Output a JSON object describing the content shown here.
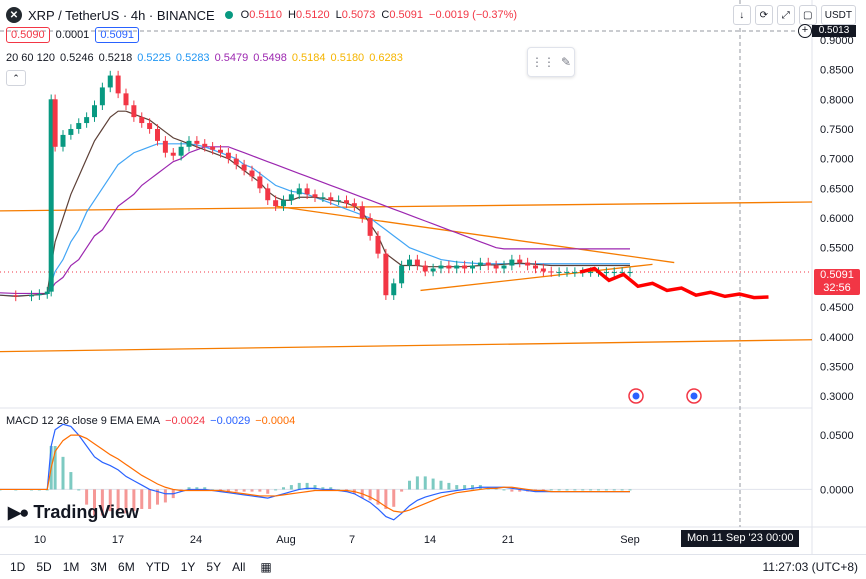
{
  "header": {
    "title": "XRP / TetherUS · 4h · BINANCE",
    "logo": "✕",
    "ohlc": [
      {
        "k": "O",
        "v": "0.5110"
      },
      {
        "k": "H",
        "v": "0.5120"
      },
      {
        "k": "L",
        "v": "0.5073"
      },
      {
        "k": "C",
        "v": "0.5091"
      }
    ],
    "change": "−0.0019 (−0.37%)",
    "bid": "0.5090",
    "spread": "0.0001",
    "ask": "0.5091",
    "currency": "USDT"
  },
  "ma_legend": {
    "label": "20 60 120",
    "values": [
      {
        "v": "0.5246",
        "color": "#131722"
      },
      {
        "v": "0.5218",
        "color": "#131722"
      },
      {
        "v": "0.5225",
        "color": "#2196f3"
      },
      {
        "v": "0.5283",
        "color": "#2196f3"
      },
      {
        "v": "0.5479",
        "color": "#9c27b0"
      },
      {
        "v": "0.5498",
        "color": "#9c27b0"
      },
      {
        "v": "0.5184",
        "color": "#f5b400"
      },
      {
        "v": "0.5180",
        "color": "#f5b400"
      },
      {
        "v": "0.6283",
        "color": "#f5b400"
      }
    ]
  },
  "macd_legend": {
    "label": "MACD 12 26 close 9 EMA EMA",
    "values": [
      {
        "v": "−0.0024",
        "color": "#f23645"
      },
      {
        "v": "−0.0029",
        "color": "#2962ff"
      },
      {
        "v": "−0.0004",
        "color": "#ff6d00"
      }
    ]
  },
  "price_label": {
    "price": "0.5091",
    "countdown": "32:56"
  },
  "dark_tag": "0.5013",
  "date_tooltip": "Mon 11 Sep '23   00:00",
  "brand": "TradingView",
  "ranges": [
    "1D",
    "5D",
    "1M",
    "3M",
    "6M",
    "YTD",
    "1Y",
    "5Y",
    "All"
  ],
  "clock": "11:27:03 (UTC+8)",
  "top_buttons": [
    "↓",
    "⟳",
    "⤢",
    "▢"
  ],
  "chart_data": {
    "type": "line",
    "symbol": "XRPUSDT",
    "timeframe": "4h",
    "x_tick_labels": [
      "10",
      "17",
      "24",
      "Aug",
      "7",
      "14",
      "21",
      "Sep"
    ],
    "y_ticks": [
      "0.9000",
      "0.8500",
      "0.8000",
      "0.7500",
      "0.7000",
      "0.6500",
      "0.6000",
      "0.5500",
      "0.5000",
      "0.4500",
      "0.4000",
      "0.3500",
      "0.3000"
    ],
    "ylim": [
      0.28,
      0.91
    ],
    "macd_ticks": [
      "0.0500",
      "0.0000"
    ],
    "macd_ylim": [
      -0.03,
      0.075
    ],
    "x_range": [
      0,
      112
    ],
    "price_x_days": [
      0,
      2,
      4,
      5,
      6,
      6.5,
      7,
      8,
      9,
      10,
      11,
      12,
      13,
      14,
      15,
      16,
      17,
      18,
      19,
      20,
      21,
      22,
      23,
      24,
      25,
      26,
      27,
      28,
      29,
      30,
      31,
      32,
      33,
      34,
      35,
      36,
      37,
      38,
      39,
      40,
      41,
      42,
      43,
      44,
      45,
      46,
      47,
      48,
      49,
      50,
      51,
      52,
      53,
      54,
      55,
      56,
      57,
      58,
      59,
      60,
      61,
      62,
      63,
      64,
      65,
      66,
      67,
      68,
      69,
      70,
      71,
      72,
      73,
      74,
      75,
      76,
      77,
      78,
      79,
      80
    ],
    "price": [
      0.47,
      0.468,
      0.47,
      0.472,
      0.476,
      0.8,
      0.72,
      0.74,
      0.75,
      0.76,
      0.77,
      0.79,
      0.82,
      0.84,
      0.81,
      0.79,
      0.77,
      0.76,
      0.75,
      0.73,
      0.71,
      0.705,
      0.72,
      0.73,
      0.725,
      0.72,
      0.715,
      0.71,
      0.7,
      0.69,
      0.68,
      0.67,
      0.65,
      0.63,
      0.62,
      0.63,
      0.64,
      0.65,
      0.64,
      0.635,
      0.635,
      0.63,
      0.63,
      0.625,
      0.62,
      0.6,
      0.57,
      0.54,
      0.47,
      0.49,
      0.52,
      0.53,
      0.52,
      0.51,
      0.515,
      0.52,
      0.515,
      0.52,
      0.515,
      0.52,
      0.525,
      0.52,
      0.515,
      0.52,
      0.53,
      0.525,
      0.52,
      0.515,
      0.51,
      0.509,
      0.509,
      0.509,
      0.509,
      0.509,
      0.509,
      0.509,
      0.509,
      0.509,
      0.509,
      0.509
    ],
    "ma20": [
      0.47,
      0.468,
      0.47,
      0.471,
      0.473,
      0.52,
      0.56,
      0.6,
      0.64,
      0.67,
      0.7,
      0.73,
      0.75,
      0.77,
      0.78,
      0.78,
      0.775,
      0.77,
      0.765,
      0.755,
      0.745,
      0.735,
      0.73,
      0.725,
      0.72,
      0.715,
      0.71,
      0.705,
      0.7,
      0.69,
      0.68,
      0.67,
      0.66,
      0.645,
      0.635,
      0.63,
      0.63,
      0.635,
      0.635,
      0.635,
      0.633,
      0.63,
      0.628,
      0.625,
      0.62,
      0.61,
      0.59,
      0.57,
      0.54,
      0.53,
      0.52,
      0.52,
      0.52,
      0.518,
      0.518,
      0.518,
      0.518,
      0.518,
      0.518,
      0.519,
      0.52,
      0.521,
      0.521,
      0.522,
      0.523,
      0.524,
      0.523,
      0.522,
      0.521,
      0.52,
      0.52,
      0.52,
      0.52,
      0.52,
      0.52,
      0.52,
      0.52,
      0.52,
      0.52,
      0.52
    ],
    "ma60": [
      0.47,
      0.469,
      0.47,
      0.471,
      0.472,
      0.49,
      0.51,
      0.53,
      0.56,
      0.58,
      0.61,
      0.63,
      0.65,
      0.67,
      0.69,
      0.7,
      0.71,
      0.715,
      0.72,
      0.725,
      0.725,
      0.725,
      0.725,
      0.725,
      0.723,
      0.72,
      0.715,
      0.71,
      0.705,
      0.7,
      0.69,
      0.685,
      0.675,
      0.665,
      0.655,
      0.65,
      0.645,
      0.643,
      0.64,
      0.635,
      0.63,
      0.625,
      0.62,
      0.615,
      0.61,
      0.605,
      0.6,
      0.59,
      0.58,
      0.57,
      0.56,
      0.55,
      0.545,
      0.54,
      0.535,
      0.53,
      0.528,
      0.526,
      0.525,
      0.524,
      0.523,
      0.523,
      0.523,
      0.523,
      0.523,
      0.523,
      0.523,
      0.523,
      0.523,
      0.523,
      0.523,
      0.523,
      0.523,
      0.523,
      0.523,
      0.523,
      0.523,
      0.523,
      0.523,
      0.523
    ],
    "ma120": [
      0.474,
      0.473,
      0.473,
      0.473,
      0.473,
      0.48,
      0.49,
      0.5,
      0.52,
      0.53,
      0.55,
      0.57,
      0.58,
      0.6,
      0.62,
      0.63,
      0.64,
      0.655,
      0.665,
      0.675,
      0.685,
      0.695,
      0.7,
      0.71,
      0.715,
      0.72,
      0.72,
      0.72,
      0.72,
      0.715,
      0.71,
      0.705,
      0.7,
      0.695,
      0.69,
      0.685,
      0.68,
      0.675,
      0.67,
      0.665,
      0.66,
      0.655,
      0.65,
      0.645,
      0.64,
      0.635,
      0.63,
      0.625,
      0.62,
      0.615,
      0.61,
      0.605,
      0.6,
      0.595,
      0.59,
      0.585,
      0.58,
      0.575,
      0.57,
      0.565,
      0.56,
      0.555,
      0.55,
      0.548,
      0.548,
      0.548,
      0.548,
      0.548,
      0.548,
      0.548,
      0.548,
      0.548,
      0.548,
      0.548,
      0.548,
      0.548,
      0.548,
      0.548,
      0.548,
      0.548
    ],
    "trend_lines": [
      {
        "x": [
          0,
          112
        ],
        "y": [
          0.612,
          0.627
        ],
        "color": "#f57c00"
      },
      {
        "x": [
          0,
          112
        ],
        "y": [
          0.375,
          0.395
        ],
        "color": "#f57c00"
      },
      {
        "x": [
          38,
          93
        ],
        "y": [
          0.62,
          0.525
        ],
        "color": "#f57c00"
      },
      {
        "x": [
          58,
          90
        ],
        "y": [
          0.478,
          0.522
        ],
        "color": "#f57c00"
      }
    ],
    "projection": {
      "x": [
        80,
        82,
        84,
        86,
        88,
        90,
        92,
        94,
        96,
        98,
        100,
        102,
        104,
        106
      ],
      "y": [
        0.509,
        0.515,
        0.495,
        0.505,
        0.485,
        0.49,
        0.478,
        0.482,
        0.47,
        0.475,
        0.468,
        0.472,
        0.466,
        0.467
      ],
      "color": "#ff0000"
    },
    "last_price": 0.5091,
    "macd": [
      0.0,
      0.0,
      0.0,
      0.0,
      0.0,
      0.04,
      0.055,
      0.06,
      0.058,
      0.05,
      0.04,
      0.03,
      0.025,
      0.022,
      0.018,
      0.012,
      0.008,
      0.004,
      0.0,
      -0.002,
      -0.004,
      -0.004,
      -0.002,
      0.0,
      0.0,
      0.0,
      -0.001,
      -0.002,
      -0.003,
      -0.004,
      -0.005,
      -0.006,
      -0.007,
      -0.008,
      -0.006,
      -0.004,
      -0.002,
      0.0,
      0.001,
      0.001,
      0.0,
      0.0,
      -0.001,
      -0.002,
      -0.004,
      -0.008,
      -0.012,
      -0.018,
      -0.025,
      -0.028,
      -0.022,
      -0.015,
      -0.01,
      -0.007,
      -0.005,
      -0.003,
      -0.002,
      -0.001,
      0.0,
      0.001,
      0.002,
      0.002,
      0.002,
      0.002,
      0.001,
      0.0,
      -0.001,
      -0.002,
      -0.002,
      -0.002,
      -0.002,
      -0.002,
      -0.002,
      -0.002,
      -0.002,
      -0.002,
      -0.002,
      -0.002,
      -0.002,
      -0.002
    ],
    "signal": [
      0.0,
      0.0,
      0.0,
      0.0,
      0.0,
      0.02,
      0.035,
      0.045,
      0.05,
      0.05,
      0.047,
      0.042,
      0.037,
      0.032,
      0.028,
      0.023,
      0.018,
      0.013,
      0.009,
      0.005,
      0.002,
      0.0,
      -0.001,
      -0.001,
      -0.001,
      -0.001,
      -0.001,
      -0.001,
      -0.002,
      -0.003,
      -0.004,
      -0.005,
      -0.006,
      -0.006,
      -0.006,
      -0.005,
      -0.004,
      -0.003,
      -0.002,
      -0.001,
      -0.001,
      -0.001,
      -0.001,
      -0.001,
      -0.002,
      -0.004,
      -0.007,
      -0.011,
      -0.016,
      -0.02,
      -0.021,
      -0.019,
      -0.016,
      -0.013,
      -0.01,
      -0.007,
      -0.005,
      -0.003,
      -0.002,
      -0.001,
      0.0,
      0.001,
      0.001,
      0.002,
      0.002,
      0.001,
      0.0,
      -0.001,
      -0.001,
      -0.002,
      -0.002,
      -0.002,
      -0.002,
      -0.002,
      -0.002,
      -0.002,
      -0.002,
      -0.002,
      -0.002,
      -0.002
    ]
  }
}
